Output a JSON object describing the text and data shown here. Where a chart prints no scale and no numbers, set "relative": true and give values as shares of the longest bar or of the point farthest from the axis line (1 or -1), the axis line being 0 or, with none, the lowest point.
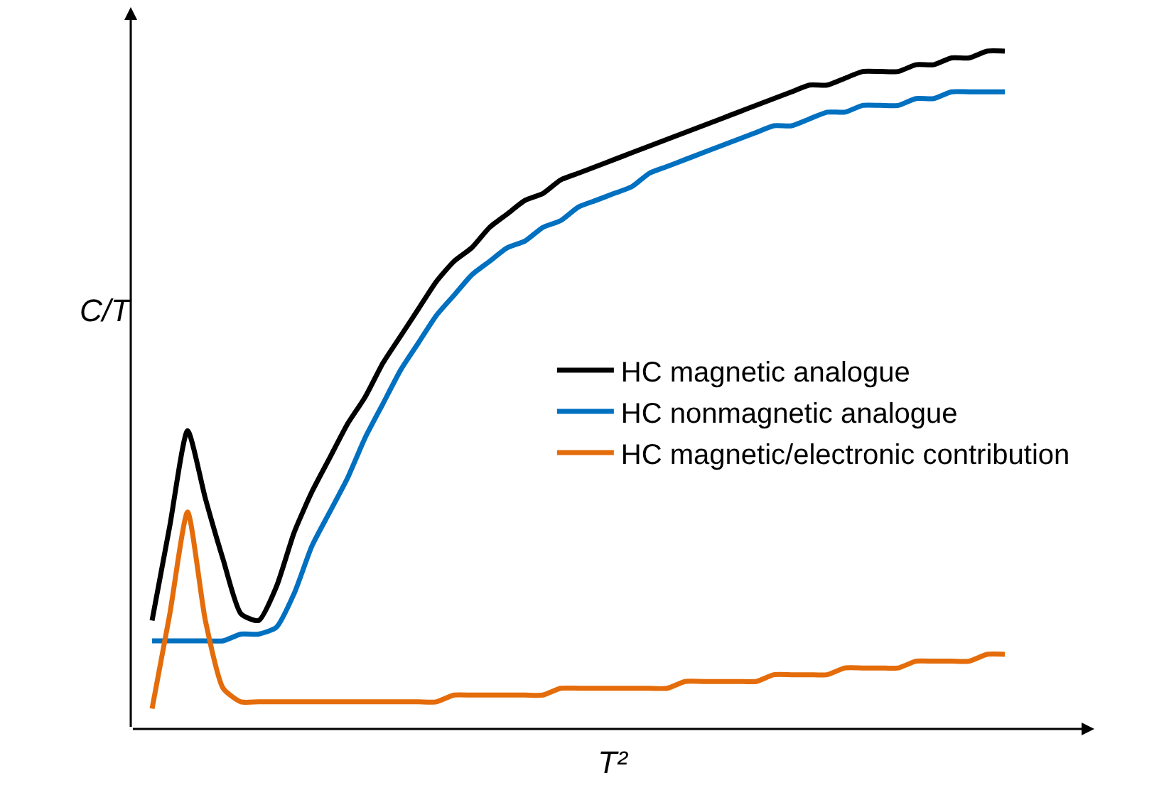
{
  "chart_data": {
    "type": "line",
    "relative": true,
    "xlabel": "T²",
    "ylabel": "C/T",
    "legend": "right",
    "marker": "none",
    "line_style": "solid",
    "categories": [
      null,
      null,
      null,
      null,
      null,
      null,
      null,
      null,
      null,
      null,
      null,
      null,
      null,
      null,
      null,
      null,
      null,
      null,
      null,
      null,
      null,
      null,
      null,
      null,
      null,
      null,
      null,
      null,
      null,
      null,
      null,
      null,
      null,
      null,
      null,
      null,
      null,
      null,
      null,
      null,
      null,
      null,
      null,
      null,
      null,
      null,
      null,
      null,
      null
    ],
    "series": [
      {
        "name": "HC magnetic analogue",
        "color": "#000000",
        "values": [
          0.16,
          0.3,
          0.44,
          0.34,
          0.25,
          0.17,
          0.16,
          0.21,
          0.29,
          0.35,
          0.4,
          0.45,
          0.49,
          0.54,
          0.58,
          0.62,
          0.66,
          0.69,
          0.71,
          0.74,
          0.76,
          0.78,
          0.79,
          0.81,
          0.82,
          0.83,
          0.84,
          0.85,
          0.86,
          0.87,
          0.88,
          0.89,
          0.9,
          0.91,
          0.92,
          0.93,
          0.94,
          0.95,
          0.95,
          0.96,
          0.97,
          0.97,
          0.97,
          0.98,
          0.98,
          0.99,
          0.99,
          1.0,
          1.0
        ]
      },
      {
        "name": "HC nonmagnetic analogue",
        "color": "#0070c0",
        "values": [
          0.13,
          0.13,
          0.13,
          0.13,
          0.13,
          0.14,
          0.14,
          0.15,
          0.2,
          0.27,
          0.32,
          0.37,
          0.43,
          0.48,
          0.53,
          0.57,
          0.61,
          0.64,
          0.67,
          0.69,
          0.71,
          0.72,
          0.74,
          0.75,
          0.77,
          0.78,
          0.79,
          0.8,
          0.82,
          0.83,
          0.84,
          0.85,
          0.86,
          0.87,
          0.88,
          0.89,
          0.89,
          0.9,
          0.91,
          0.91,
          0.92,
          0.92,
          0.92,
          0.93,
          0.93,
          0.94,
          0.94,
          0.94,
          0.94
        ]
      },
      {
        "name": "HC magnetic/electronic contribution",
        "color": "#e46c0a",
        "values": [
          0.03,
          0.17,
          0.32,
          0.16,
          0.06,
          0.04,
          0.04,
          0.04,
          0.04,
          0.04,
          0.04,
          0.04,
          0.04,
          0.04,
          0.04,
          0.04,
          0.04,
          0.05,
          0.05,
          0.05,
          0.05,
          0.05,
          0.05,
          0.06,
          0.06,
          0.06,
          0.06,
          0.06,
          0.06,
          0.06,
          0.07,
          0.07,
          0.07,
          0.07,
          0.07,
          0.08,
          0.08,
          0.08,
          0.08,
          0.09,
          0.09,
          0.09,
          0.09,
          0.1,
          0.1,
          0.1,
          0.1,
          0.11,
          0.11
        ]
      }
    ]
  }
}
